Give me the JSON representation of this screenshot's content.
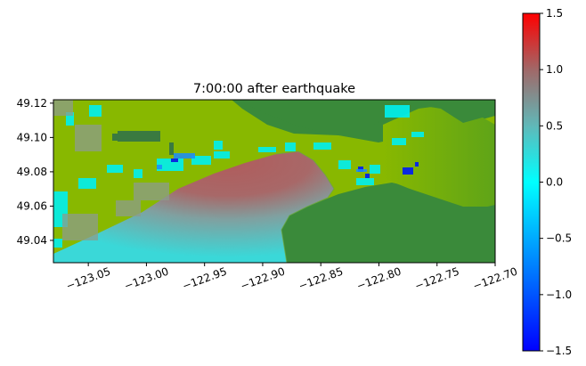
{
  "chart_data": {
    "type": "heatmap",
    "title": "7:00:00 after earthquake",
    "xlabel": "",
    "ylabel": "",
    "xlim": [
      -123.08,
      -122.7
    ],
    "ylim": [
      49.027,
      49.122
    ],
    "x_ticks": [
      -123.05,
      -123.0,
      -122.95,
      -122.9,
      -122.85,
      -122.8,
      -122.75,
      -122.7
    ],
    "x_tick_labels": [
      "−123.05",
      "−123.00",
      "−122.95",
      "−122.90",
      "−122.85",
      "−122.80",
      "−122.75",
      "−122.70"
    ],
    "y_ticks": [
      49.04,
      49.06,
      49.08,
      49.1,
      49.12
    ],
    "y_tick_labels": [
      "49.04",
      "49.06",
      "49.08",
      "49.10",
      "49.12"
    ],
    "colorbar": {
      "range": [
        -1.5,
        1.5
      ],
      "ticks": [
        -1.5,
        -1.0,
        -0.5,
        0.0,
        0.5,
        1.0,
        1.5
      ],
      "tick_labels": [
        "−1.5",
        "−1.0",
        "−0.5",
        "0.0",
        "0.5",
        "1.0",
        "1.5"
      ],
      "colors": [
        "#0000ff",
        "#00ffff",
        "#808080",
        "#ff0000"
      ]
    },
    "colors": {
      "land_green": "#3a8a3a",
      "lowland_olive": "#88b800",
      "water_high": "#b85a5a",
      "water_mid": "#50c8c8"
    }
  }
}
